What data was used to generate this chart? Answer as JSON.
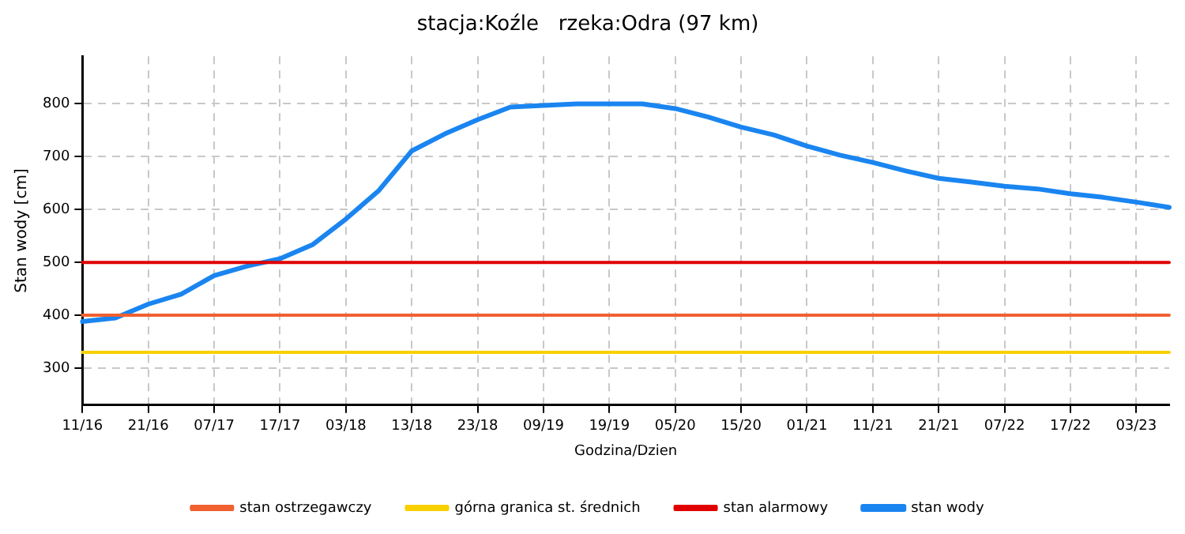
{
  "chart_data": {
    "type": "line",
    "title": "stacja:Koźle   rzeka:Odra (97 km)",
    "xlabel": "Godzina/Dzien",
    "ylabel": "Stan wody [cm]",
    "categories": [
      "11/16",
      null,
      "21/16",
      null,
      "07/17",
      null,
      "17/17",
      null,
      "03/18",
      null,
      "13/18",
      null,
      "23/18",
      null,
      "09/19",
      null,
      "19/19",
      null,
      "05/20",
      null,
      "15/20",
      null,
      "01/21",
      null,
      "11/21",
      null,
      "21/21",
      null,
      "07/22",
      null,
      "17/22",
      null,
      "03/23",
      null
    ],
    "series": [
      {
        "name": "stan ostrzegawczy",
        "color": "#f06030",
        "values": [
          400,
          400,
          400,
          400,
          400,
          400,
          400,
          400,
          400,
          400,
          400,
          400,
          400,
          400,
          400,
          400,
          400,
          400,
          400,
          400,
          400,
          400,
          400,
          400,
          400,
          400,
          400,
          400,
          400,
          400,
          400,
          400,
          400,
          400
        ]
      },
      {
        "name": "górna granica st. średnich",
        "color": "#f8d000",
        "values": [
          330,
          330,
          330,
          330,
          330,
          330,
          330,
          330,
          330,
          330,
          330,
          330,
          330,
          330,
          330,
          330,
          330,
          330,
          330,
          330,
          330,
          330,
          330,
          330,
          330,
          330,
          330,
          330,
          330,
          330,
          330,
          330,
          330,
          330
        ]
      },
      {
        "name": "stan alarmowy",
        "color": "#e00000",
        "values": [
          500,
          500,
          500,
          500,
          500,
          500,
          500,
          500,
          500,
          500,
          500,
          500,
          500,
          500,
          500,
          500,
          500,
          500,
          500,
          500,
          500,
          500,
          500,
          500,
          500,
          500,
          500,
          500,
          500,
          500,
          500,
          500,
          500,
          500
        ]
      },
      {
        "name": "stan wody",
        "color": "#1a85f0",
        "values": [
          388,
          395,
          421,
          440,
          475,
          493,
          507,
          534,
          582,
          636,
          711,
          743,
          770,
          794,
          797,
          800,
          800,
          800,
          791,
          775,
          756,
          741,
          720,
          703,
          689,
          673,
          659,
          652,
          644,
          639,
          630,
          623,
          614,
          604
        ]
      }
    ],
    "ylim": [
      230,
      890
    ],
    "yticks": [
      300,
      400,
      500,
      600,
      700,
      800
    ],
    "grid": true,
    "legend": "bottom",
    "marker": "none",
    "line_style": "solid"
  }
}
